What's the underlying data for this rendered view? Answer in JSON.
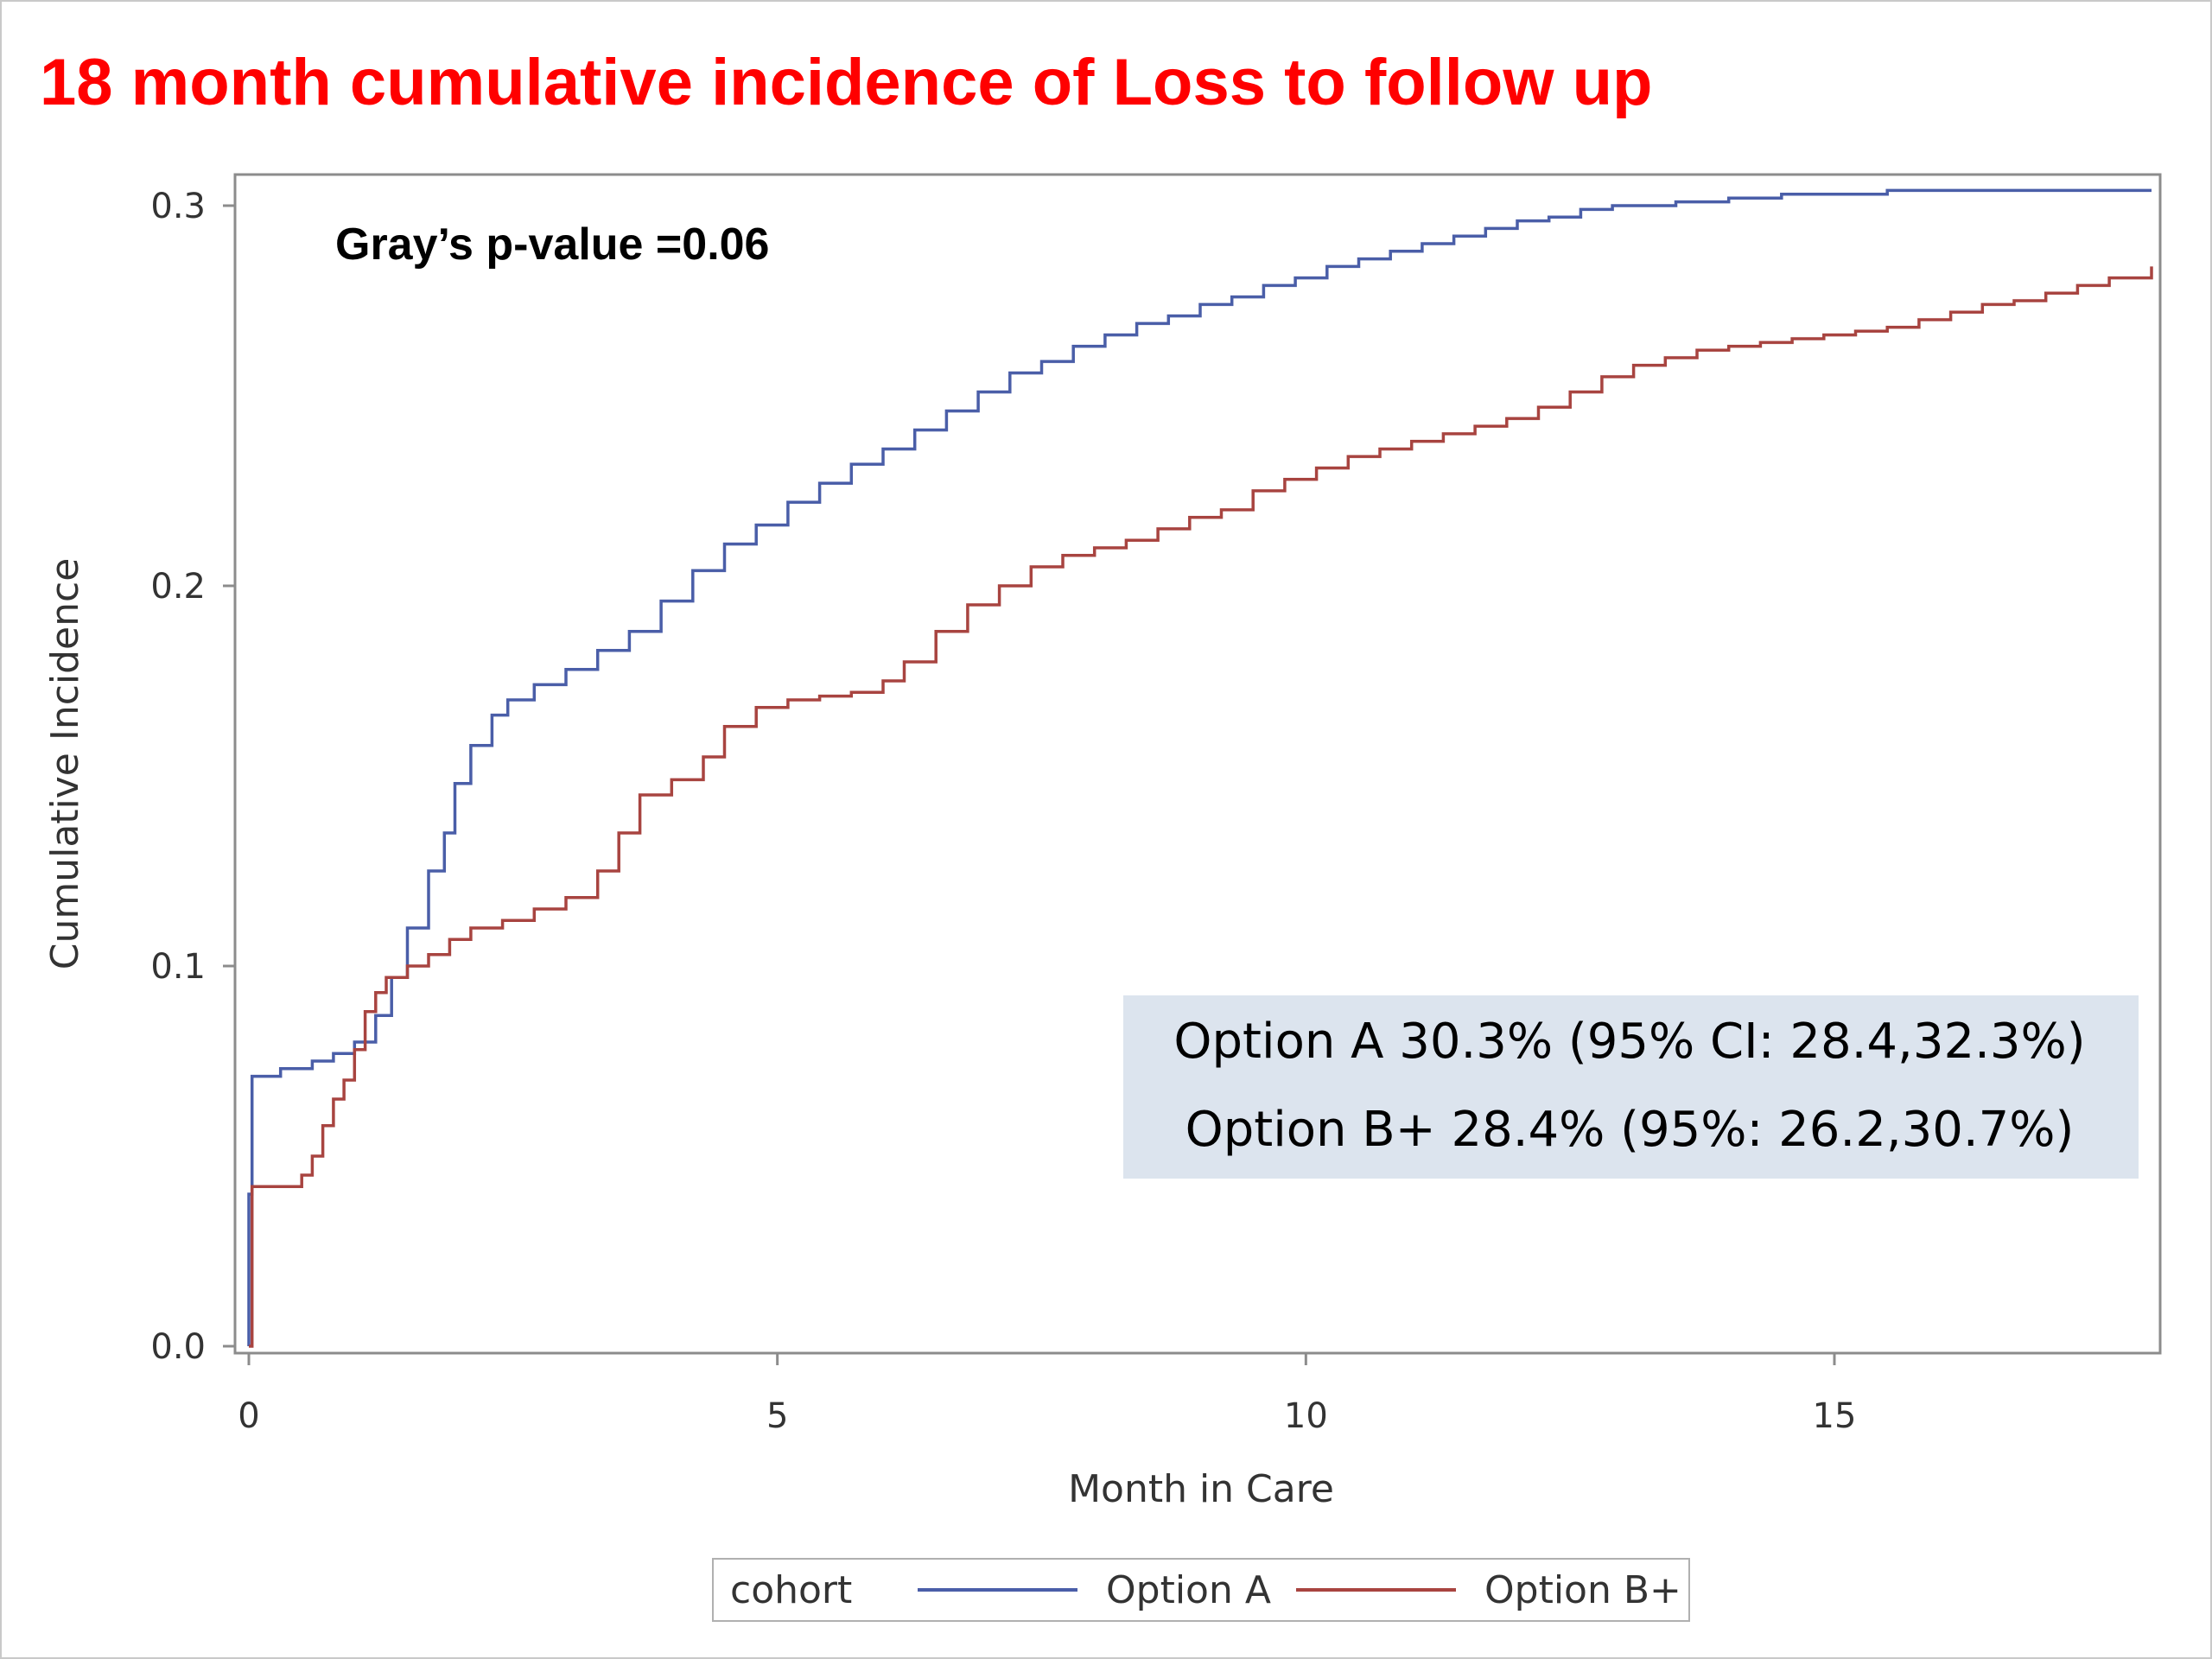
{
  "title": "18 month cumulative incidence of Loss to follow up",
  "chart_data": {
    "type": "line",
    "step": true,
    "xlabel": "Month in Care",
    "ylabel": "Cumulative Incidence",
    "xlim": [
      0,
      18
    ],
    "ylim": [
      0,
      0.3
    ],
    "xticks": [
      "0",
      "5",
      "10",
      "15"
    ],
    "yticks": [
      "0.0",
      "0.1",
      "0.2",
      "0.3"
    ],
    "grid": false,
    "legend": {
      "title": "cohort",
      "position": "bottom-center"
    },
    "annotations": {
      "pvalue": "Gray’s p-value =0.06",
      "summary": [
        "Option A 30.3% (95% CI: 28.4,32.3%)",
        "Option B+ 28.4% (95%: 26.2,30.7%)"
      ]
    },
    "series": [
      {
        "name": "Option A",
        "color": "#4a5ea8",
        "x": [
          0,
          0.03,
          0.3,
          0.6,
          0.8,
          1.0,
          1.2,
          1.35,
          1.5,
          1.7,
          1.85,
          1.95,
          2.1,
          2.3,
          2.45,
          2.7,
          3.0,
          3.3,
          3.6,
          3.9,
          4.2,
          4.5,
          4.8,
          5.1,
          5.4,
          5.7,
          6.0,
          6.3,
          6.6,
          6.9,
          7.2,
          7.5,
          7.8,
          8.1,
          8.4,
          8.7,
          9.0,
          9.3,
          9.6,
          9.9,
          10.2,
          10.5,
          10.8,
          11.1,
          11.4,
          11.7,
          12.0,
          12.3,
          12.6,
          12.9,
          13.5,
          14.0,
          14.5,
          15.0,
          15.5,
          16.0,
          18.0
        ],
        "y": [
          0.04,
          0.071,
          0.073,
          0.075,
          0.077,
          0.08,
          0.087,
          0.097,
          0.11,
          0.125,
          0.135,
          0.148,
          0.158,
          0.166,
          0.17,
          0.174,
          0.178,
          0.183,
          0.188,
          0.196,
          0.204,
          0.211,
          0.216,
          0.222,
          0.227,
          0.232,
          0.236,
          0.241,
          0.246,
          0.251,
          0.256,
          0.259,
          0.263,
          0.266,
          0.269,
          0.271,
          0.274,
          0.276,
          0.279,
          0.281,
          0.284,
          0.286,
          0.288,
          0.29,
          0.292,
          0.294,
          0.296,
          0.297,
          0.299,
          0.3,
          0.301,
          0.302,
          0.303,
          0.303,
          0.304,
          0.304,
          0.304
        ]
      },
      {
        "name": "Option B+",
        "color": "#a84440",
        "x": [
          0,
          0.03,
          0.5,
          0.6,
          0.7,
          0.8,
          0.9,
          1.0,
          1.1,
          1.2,
          1.3,
          1.5,
          1.7,
          1.9,
          2.1,
          2.4,
          2.7,
          3.0,
          3.3,
          3.5,
          3.7,
          4.0,
          4.3,
          4.5,
          4.8,
          5.1,
          5.4,
          5.7,
          6.0,
          6.2,
          6.5,
          6.8,
          7.1,
          7.4,
          7.7,
          8.0,
          8.3,
          8.6,
          8.9,
          9.2,
          9.5,
          9.8,
          10.1,
          10.4,
          10.7,
          11.0,
          11.3,
          11.6,
          11.9,
          12.2,
          12.5,
          12.8,
          13.1,
          13.4,
          13.7,
          14.0,
          14.3,
          14.6,
          14.9,
          15.2,
          15.5,
          15.8,
          16.1,
          16.4,
          16.7,
          17.0,
          17.3,
          17.6,
          18.0
        ],
        "y": [
          0.0,
          0.042,
          0.045,
          0.05,
          0.058,
          0.065,
          0.07,
          0.078,
          0.088,
          0.093,
          0.097,
          0.1,
          0.103,
          0.107,
          0.11,
          0.112,
          0.115,
          0.118,
          0.125,
          0.135,
          0.145,
          0.149,
          0.155,
          0.163,
          0.168,
          0.17,
          0.171,
          0.172,
          0.175,
          0.18,
          0.188,
          0.195,
          0.2,
          0.205,
          0.208,
          0.21,
          0.212,
          0.215,
          0.218,
          0.22,
          0.225,
          0.228,
          0.231,
          0.234,
          0.236,
          0.238,
          0.24,
          0.242,
          0.244,
          0.247,
          0.251,
          0.255,
          0.258,
          0.26,
          0.262,
          0.263,
          0.264,
          0.265,
          0.266,
          0.267,
          0.268,
          0.27,
          0.272,
          0.274,
          0.275,
          0.277,
          0.279,
          0.281,
          0.284
        ]
      }
    ]
  }
}
